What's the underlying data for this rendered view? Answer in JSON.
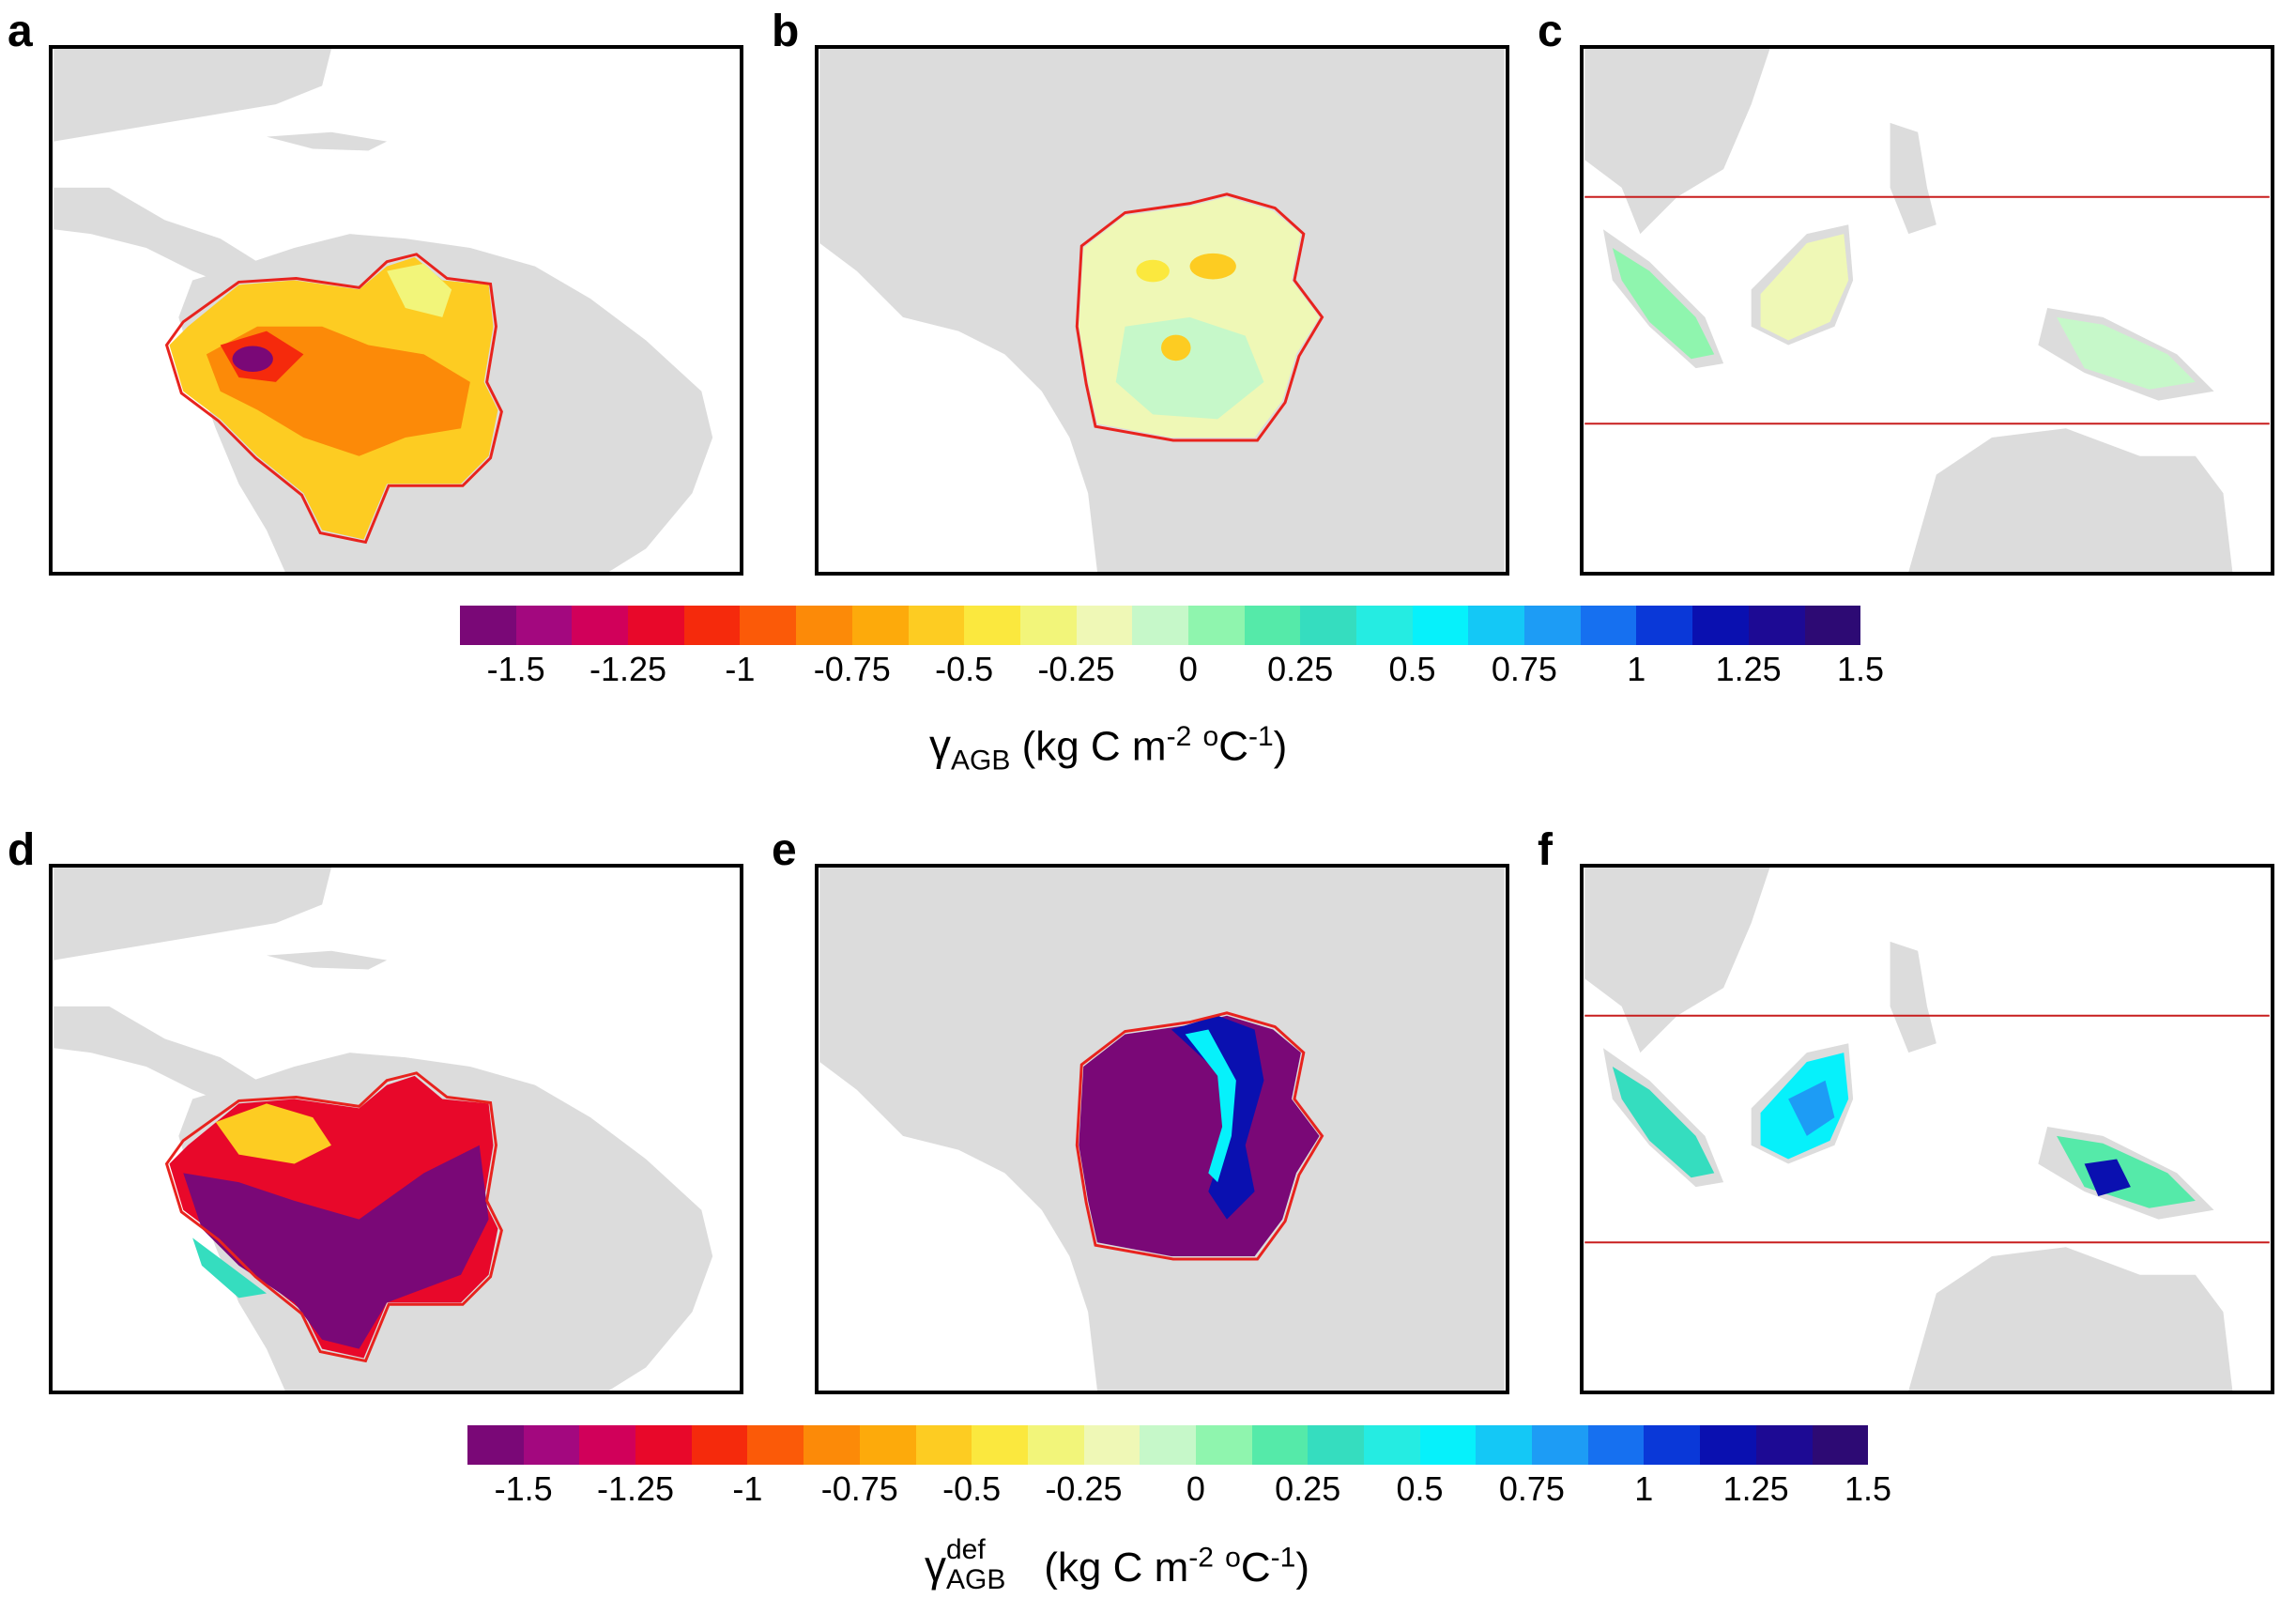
{
  "panels": {
    "a": {
      "letter": "a"
    },
    "b": {
      "letter": "b"
    },
    "c": {
      "letter": "c"
    },
    "d": {
      "letter": "d"
    },
    "e": {
      "letter": "e"
    },
    "f": {
      "letter": "f"
    }
  },
  "colorbar": {
    "colors": [
      "#7a0877",
      "#a3087f",
      "#d1005a",
      "#e8082a",
      "#f52a0c",
      "#fb5a08",
      "#fc8a08",
      "#fdaa0b",
      "#fdcc22",
      "#fbe83e",
      "#f2f57a",
      "#eff8b6",
      "#c6f8c9",
      "#8ff5ae",
      "#55eaa9",
      "#35ddbf",
      "#25ece2",
      "#06f1fb",
      "#14c8f6",
      "#1d9cf5",
      "#1670f0",
      "#0a38d8",
      "#0a10b0",
      "#1d0a94",
      "#2d0a74"
    ],
    "ticks": [
      "-1.5",
      "-1.25",
      "-1",
      "-0.75",
      "-0.5",
      "-0.25",
      "0",
      "0.25",
      "0.5",
      "0.75",
      "1",
      "1.25",
      "1.5"
    ],
    "tick_positions_fraction": [
      0.0417,
      0.1458,
      0.25,
      0.3542,
      0.4583,
      0.5625,
      0.6667,
      0.7708,
      0.875,
      0.9792,
      1.0833,
      1.1875,
      1.2917
    ]
  },
  "colorbar_top": {
    "label_symbol": "γ",
    "label_sub": "AGB",
    "label_units": " (kg C m",
    "label_exp1": "-2",
    "label_units2": " ",
    "label_exp2": "o",
    "label_units3": "C",
    "label_exp3": "-1",
    "label_close": ")"
  },
  "colorbar_bottom": {
    "label_symbol": "γ",
    "label_sup": "def",
    "label_sub": "AGB",
    "label_units": " (kg C m",
    "label_exp1": "-2",
    "label_units2": " ",
    "label_exp2": "o",
    "label_units3": "C",
    "label_exp3": "-1",
    "label_close": ")"
  },
  "colors": {
    "land": "#dcdcdc",
    "ocean": "#ffffff",
    "boundary": "#e8231e",
    "latitude_line": "#c81e1e",
    "frame": "#000000"
  }
}
